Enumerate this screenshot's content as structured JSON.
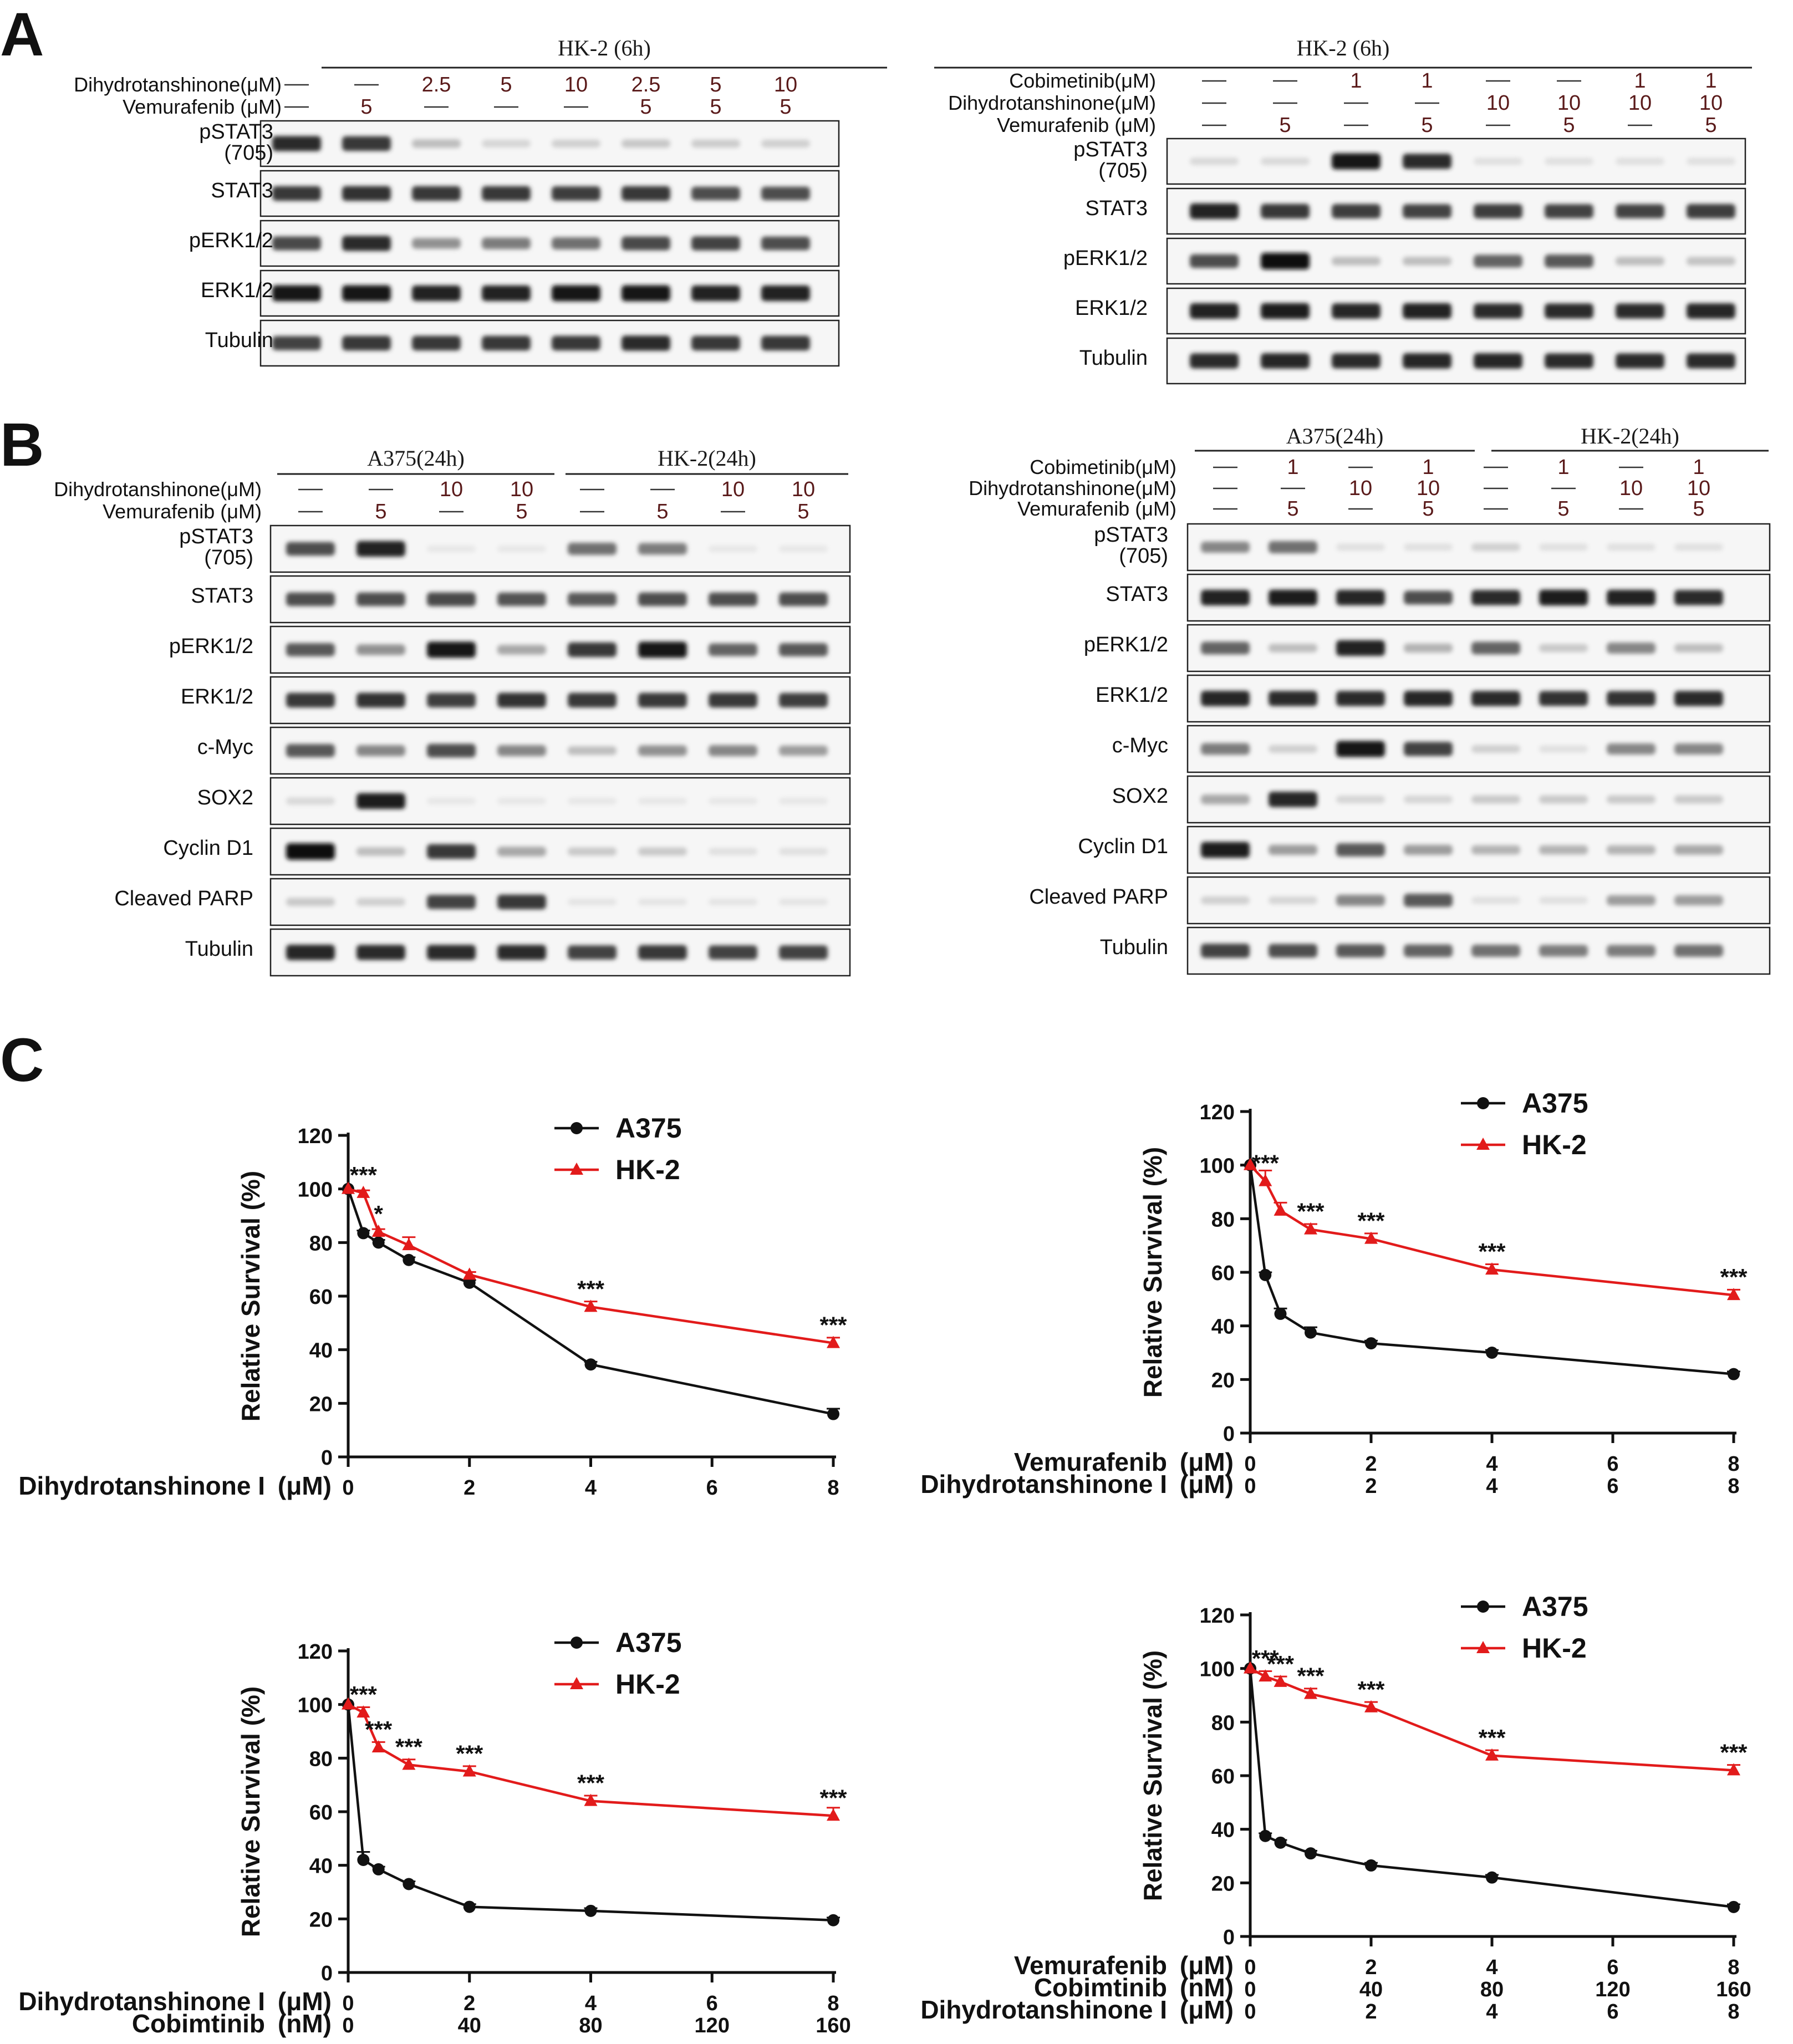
{
  "panel_labels": [
    "A",
    "B",
    "C"
  ],
  "lane_dash": "—",
  "blots": [
    {
      "id": "A-left",
      "groups": [
        {
          "title": "HK-2 (6h)",
          "from": 0,
          "to": 7
        }
      ],
      "conditions": [
        {
          "label": "Dihydrotanshinone(μM)",
          "values": [
            "—",
            "—",
            "2.5",
            "5",
            "10",
            "2.5",
            "5",
            "10"
          ]
        },
        {
          "label": "Vemurafenib (μM)",
          "values": [
            "—",
            "5",
            "—",
            "—",
            "—",
            "5",
            "5",
            "5"
          ]
        }
      ],
      "rows": [
        {
          "label": [
            "pSTAT3",
            "(705)"
          ],
          "intensity": [
            0.85,
            0.8,
            0.2,
            0.1,
            0.12,
            0.16,
            0.14,
            0.12
          ]
        },
        {
          "label": [
            "STAT3"
          ],
          "intensity": [
            0.8,
            0.82,
            0.8,
            0.8,
            0.78,
            0.8,
            0.7,
            0.7
          ]
        },
        {
          "label": [
            "pERK1/2"
          ],
          "intensity": [
            0.72,
            0.85,
            0.4,
            0.5,
            0.55,
            0.72,
            0.75,
            0.7
          ]
        },
        {
          "label": [
            "ERK1/2"
          ],
          "intensity": [
            0.95,
            0.95,
            0.9,
            0.9,
            0.95,
            0.95,
            0.9,
            0.9
          ]
        },
        {
          "label": [
            "Tubulin"
          ],
          "intensity": [
            0.75,
            0.8,
            0.8,
            0.8,
            0.8,
            0.85,
            0.8,
            0.8
          ]
        }
      ]
    },
    {
      "id": "A-right",
      "groups": [
        {
          "title": "HK-2 (6h)",
          "from": 0,
          "to": 7
        }
      ],
      "conditions": [
        {
          "label": "Cobimetinib(μM)",
          "values": [
            "—",
            "—",
            "1",
            "1",
            "—",
            "—",
            "1",
            "1"
          ]
        },
        {
          "label": "Dihydrotanshinone(μM)",
          "values": [
            "—",
            "—",
            "—",
            "—",
            "10",
            "10",
            "10",
            "10"
          ]
        },
        {
          "label": "Vemurafenib (μM)",
          "values": [
            "—",
            "5",
            "—",
            "5",
            "—",
            "5",
            "—",
            "5"
          ]
        }
      ],
      "rows": [
        {
          "label": [
            "pSTAT3",
            "(705)"
          ],
          "intensity": [
            0.08,
            0.08,
            0.95,
            0.85,
            0.05,
            0.05,
            0.05,
            0.05
          ]
        },
        {
          "label": [
            "STAT3"
          ],
          "intensity": [
            0.9,
            0.8,
            0.78,
            0.75,
            0.78,
            0.75,
            0.75,
            0.78
          ]
        },
        {
          "label": [
            "pERK1/2"
          ],
          "intensity": [
            0.7,
            0.98,
            0.2,
            0.2,
            0.6,
            0.65,
            0.2,
            0.18
          ]
        },
        {
          "label": [
            "ERK1/2"
          ],
          "intensity": [
            0.9,
            0.92,
            0.88,
            0.9,
            0.85,
            0.85,
            0.85,
            0.88
          ]
        },
        {
          "label": [
            "Tubulin"
          ],
          "intensity": [
            0.85,
            0.88,
            0.85,
            0.88,
            0.88,
            0.85,
            0.85,
            0.85
          ]
        }
      ]
    },
    {
      "id": "B-left",
      "groups": [
        {
          "title": "A375(24h)",
          "from": 0,
          "to": 3
        },
        {
          "title": "HK-2(24h)",
          "from": 4,
          "to": 7
        }
      ],
      "conditions": [
        {
          "label": "Dihydrotanshinone(μM)",
          "values": [
            "—",
            "—",
            "10",
            "10",
            "—",
            "—",
            "10",
            "10"
          ]
        },
        {
          "label": "Vemurafenib (μM)",
          "values": [
            "—",
            "5",
            "—",
            "5",
            "—",
            "5",
            "—",
            "5"
          ]
        }
      ],
      "rows": [
        {
          "label": [
            "pSTAT3",
            "(705)"
          ],
          "intensity": [
            0.7,
            0.9,
            0.02,
            0.02,
            0.55,
            0.5,
            0.02,
            0.02
          ]
        },
        {
          "label": [
            "STAT3"
          ],
          "intensity": [
            0.7,
            0.7,
            0.72,
            0.68,
            0.65,
            0.7,
            0.7,
            0.7
          ]
        },
        {
          "label": [
            "pERK1/2"
          ],
          "intensity": [
            0.65,
            0.4,
            0.95,
            0.3,
            0.8,
            0.95,
            0.6,
            0.65
          ]
        },
        {
          "label": [
            "ERK1/2"
          ],
          "intensity": [
            0.8,
            0.82,
            0.78,
            0.82,
            0.8,
            0.8,
            0.8,
            0.78
          ]
        },
        {
          "label": [
            "c-Myc"
          ],
          "intensity": [
            0.65,
            0.45,
            0.7,
            0.45,
            0.2,
            0.4,
            0.45,
            0.35
          ]
        },
        {
          "label": [
            "SOX2"
          ],
          "intensity": [
            0.08,
            0.92,
            0.02,
            0.02,
            0.02,
            0.02,
            0.02,
            0.02
          ]
        },
        {
          "label": [
            "Cyclin D1"
          ],
          "intensity": [
            0.98,
            0.2,
            0.8,
            0.3,
            0.15,
            0.15,
            0.05,
            0.05
          ]
        },
        {
          "label": [
            "Cleaved PARP"
          ],
          "intensity": [
            0.15,
            0.12,
            0.75,
            0.8,
            0.03,
            0.03,
            0.03,
            0.03
          ]
        },
        {
          "label": [
            "Tubulin"
          ],
          "intensity": [
            0.88,
            0.85,
            0.85,
            0.85,
            0.75,
            0.8,
            0.75,
            0.75
          ]
        }
      ]
    },
    {
      "id": "B-right",
      "groups": [
        {
          "title": "A375(24h)",
          "from": 0,
          "to": 3
        },
        {
          "title": "HK-2(24h)",
          "from": 4,
          "to": 7
        }
      ],
      "conditions": [
        {
          "label": "Cobimetinib(μM)",
          "values": [
            "—",
            "1",
            "—",
            "1",
            "—",
            "1",
            "—",
            "1"
          ]
        },
        {
          "label": "Dihydrotanshinone(μM)",
          "values": [
            "—",
            "—",
            "10",
            "10",
            "—",
            "—",
            "10",
            "10"
          ]
        },
        {
          "label": "Vemurafenib (μM)",
          "values": [
            "—",
            "5",
            "—",
            "5",
            "—",
            "5",
            "—",
            "5"
          ]
        }
      ],
      "rows": [
        {
          "label": [
            "pSTAT3",
            "(705)"
          ],
          "intensity": [
            0.45,
            0.55,
            0.05,
            0.05,
            0.12,
            0.05,
            0.05,
            0.05
          ]
        },
        {
          "label": [
            "STAT3"
          ],
          "intensity": [
            0.9,
            0.92,
            0.88,
            0.7,
            0.85,
            0.92,
            0.9,
            0.85
          ]
        },
        {
          "label": [
            "pERK1/2"
          ],
          "intensity": [
            0.6,
            0.2,
            0.9,
            0.25,
            0.6,
            0.15,
            0.45,
            0.2
          ]
        },
        {
          "label": [
            "ERK1/2"
          ],
          "intensity": [
            0.88,
            0.85,
            0.85,
            0.88,
            0.85,
            0.82,
            0.82,
            0.85
          ]
        },
        {
          "label": [
            "c-Myc"
          ],
          "intensity": [
            0.5,
            0.12,
            0.95,
            0.75,
            0.12,
            0.05,
            0.45,
            0.45
          ]
        },
        {
          "label": [
            "SOX2"
          ],
          "intensity": [
            0.3,
            0.88,
            0.1,
            0.1,
            0.15,
            0.15,
            0.15,
            0.15
          ]
        },
        {
          "label": [
            "Cyclin D1"
          ],
          "intensity": [
            0.92,
            0.35,
            0.65,
            0.35,
            0.25,
            0.25,
            0.25,
            0.3
          ]
        },
        {
          "label": [
            "Cleaved PARP"
          ],
          "intensity": [
            0.12,
            0.1,
            0.45,
            0.65,
            0.05,
            0.05,
            0.35,
            0.35
          ]
        },
        {
          "label": [
            "Tubulin"
          ],
          "intensity": [
            0.75,
            0.7,
            0.65,
            0.6,
            0.55,
            0.5,
            0.5,
            0.55
          ]
        }
      ]
    }
  ],
  "chart_data": [
    {
      "type": "line",
      "ylabel": "Relative Survival  (%)",
      "ylim": [
        0,
        120
      ],
      "yticks": [
        0,
        20,
        40,
        60,
        80,
        100,
        120
      ],
      "xlim": [
        0,
        8
      ],
      "xaxis_rows": [
        {
          "label": "Dihydrotanshinone I",
          "unit": "(μM)",
          "ticks": [
            "0",
            "2",
            "4",
            "6",
            "8"
          ]
        }
      ],
      "legend": [
        "A375",
        "HK-2"
      ],
      "series": [
        {
          "name": "A375",
          "x": [
            0,
            0.25,
            0.5,
            1,
            2,
            4,
            8
          ],
          "y": [
            100,
            83.5,
            80,
            73.5,
            65,
            34.5,
            16
          ],
          "err": [
            0,
            1,
            1,
            1,
            1,
            1,
            2
          ]
        },
        {
          "name": "HK-2",
          "x": [
            0,
            0.25,
            0.5,
            1,
            2,
            4,
            8
          ],
          "y": [
            100,
            98.5,
            84,
            79,
            68,
            56,
            42.5
          ],
          "err": [
            0,
            1,
            1,
            3,
            1,
            2,
            2
          ]
        }
      ],
      "annotations": [
        {
          "x": 0.25,
          "y": 98.5,
          "text": "***"
        },
        {
          "x": 0.5,
          "y": 84,
          "text": "*"
        },
        {
          "x": 4,
          "y": 56,
          "text": "***"
        },
        {
          "x": 8,
          "y": 42.5,
          "text": "***"
        }
      ]
    },
    {
      "type": "line",
      "ylabel": "Relative Survival  (%)",
      "ylim": [
        0,
        120
      ],
      "yticks": [
        0,
        20,
        40,
        60,
        80,
        100,
        120
      ],
      "xlim": [
        0,
        8
      ],
      "xaxis_rows": [
        {
          "label": "Vemurafenib",
          "unit": "(μM)",
          "ticks": [
            "0",
            "2",
            "4",
            "6",
            "8"
          ]
        },
        {
          "label": "Dihydrotanshinone I",
          "unit": "(μM)",
          "ticks": [
            "0",
            "2",
            "4",
            "6",
            "8"
          ]
        }
      ],
      "legend": [
        "A375",
        "HK-2"
      ],
      "series": [
        {
          "name": "A375",
          "x": [
            0,
            0.25,
            0.5,
            1,
            2,
            4,
            8
          ],
          "y": [
            100,
            59,
            44.5,
            37.5,
            33.5,
            30,
            22
          ],
          "err": [
            0,
            1,
            2,
            2,
            1,
            1,
            1
          ]
        },
        {
          "name": "HK-2",
          "x": [
            0,
            0.25,
            0.5,
            1,
            2,
            4,
            8
          ],
          "y": [
            100,
            94,
            83,
            76,
            72.5,
            61,
            51.5
          ],
          "err": [
            0,
            4,
            3,
            2,
            2,
            2,
            2
          ]
        }
      ],
      "annotations": [
        {
          "x": 0.25,
          "y": 94,
          "text": "***"
        },
        {
          "x": 1,
          "y": 76,
          "text": "***"
        },
        {
          "x": 2,
          "y": 72.5,
          "text": "***"
        },
        {
          "x": 4,
          "y": 61,
          "text": "***"
        },
        {
          "x": 8,
          "y": 51.5,
          "text": "***"
        }
      ]
    },
    {
      "type": "line",
      "ylabel": "Relative Survival  (%)",
      "ylim": [
        0,
        120
      ],
      "yticks": [
        0,
        20,
        40,
        60,
        80,
        100,
        120
      ],
      "xlim": [
        0,
        8
      ],
      "xaxis_rows": [
        {
          "label": "Dihydrotanshinone I",
          "unit": "(μM)",
          "ticks": [
            "0",
            "2",
            "4",
            "6",
            "8"
          ]
        },
        {
          "label": "Cobimtinib",
          "unit": "(nM)",
          "ticks": [
            "0",
            "40",
            "80",
            "120",
            "160"
          ]
        }
      ],
      "legend": [
        "A375",
        "HK-2"
      ],
      "series": [
        {
          "name": "A375",
          "x": [
            0,
            0.25,
            0.5,
            1,
            2,
            4,
            8
          ],
          "y": [
            100,
            42,
            38.5,
            33,
            24.5,
            23,
            19.5
          ],
          "err": [
            0,
            3,
            1,
            1,
            1,
            1,
            1
          ]
        },
        {
          "name": "HK-2",
          "x": [
            0,
            0.25,
            0.5,
            1,
            2,
            4,
            8
          ],
          "y": [
            100,
            97,
            84,
            77.5,
            75,
            64,
            58.5
          ],
          "err": [
            0,
            2,
            2,
            2,
            2,
            2,
            3
          ]
        }
      ],
      "annotations": [
        {
          "x": 0.25,
          "y": 97,
          "text": "***"
        },
        {
          "x": 0.5,
          "y": 84,
          "text": "***"
        },
        {
          "x": 1,
          "y": 77.5,
          "text": "***"
        },
        {
          "x": 2,
          "y": 75,
          "text": "***"
        },
        {
          "x": 4,
          "y": 64,
          "text": "***"
        },
        {
          "x": 8,
          "y": 58.5,
          "text": "***"
        }
      ]
    },
    {
      "type": "line",
      "ylabel": "Relative Survival  (%)",
      "ylim": [
        0,
        120
      ],
      "yticks": [
        0,
        20,
        40,
        60,
        80,
        100,
        120
      ],
      "xlim": [
        0,
        8
      ],
      "xaxis_rows": [
        {
          "label": "Vemurafenib",
          "unit": "(μM)",
          "ticks": [
            "0",
            "2",
            "4",
            "6",
            "8"
          ]
        },
        {
          "label": "Cobimtinib",
          "unit": "(nM)",
          "ticks": [
            "0",
            "40",
            "80",
            "120",
            "160"
          ]
        },
        {
          "label": "Dihydrotanshinone I",
          "unit": "(μM)",
          "ticks": [
            "0",
            "2",
            "4",
            "6",
            "8"
          ]
        }
      ],
      "legend": [
        "A375",
        "HK-2"
      ],
      "series": [
        {
          "name": "A375",
          "x": [
            0,
            0.25,
            0.5,
            1,
            2,
            4,
            8
          ],
          "y": [
            100,
            37.5,
            35,
            31,
            26.5,
            22,
            11
          ],
          "err": [
            0,
            1,
            1,
            1,
            1,
            1,
            1
          ]
        },
        {
          "name": "HK-2",
          "x": [
            0,
            0.25,
            0.5,
            1,
            2,
            4,
            8
          ],
          "y": [
            100,
            97,
            95,
            90.5,
            85.5,
            67.5,
            62
          ],
          "err": [
            0,
            2,
            2,
            2,
            2,
            2,
            2
          ]
        }
      ],
      "annotations": [
        {
          "x": 0.25,
          "y": 97,
          "text": "***"
        },
        {
          "x": 0.5,
          "y": 95,
          "text": "***"
        },
        {
          "x": 1,
          "y": 90.5,
          "text": "***"
        },
        {
          "x": 2,
          "y": 85.5,
          "text": "***"
        },
        {
          "x": 4,
          "y": 67.5,
          "text": "***"
        },
        {
          "x": 8,
          "y": 62,
          "text": "***"
        }
      ]
    }
  ]
}
